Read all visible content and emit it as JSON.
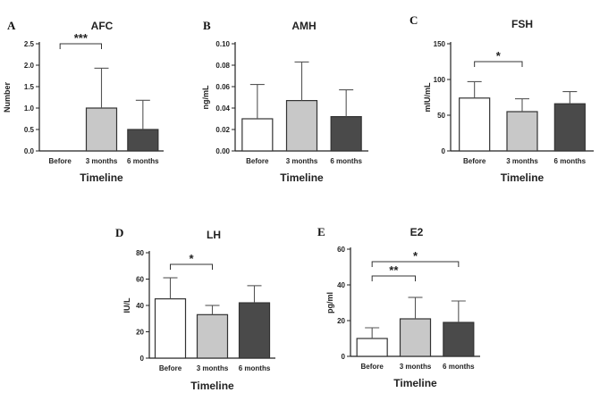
{
  "chart_data": [
    {
      "panel": "A",
      "type": "bar",
      "title": "AFC",
      "xlabel": "Timeline",
      "ylabel": "Number",
      "categories": [
        "Before",
        "3 months",
        "6 months"
      ],
      "values": [
        0,
        1.0,
        0.5
      ],
      "errors": [
        0,
        0.93,
        0.68
      ],
      "ylim": [
        0,
        2.5
      ],
      "yticks": [
        "0.0",
        "0.5",
        "1.0",
        "1.5",
        "2.0",
        "2.5"
      ],
      "bar_colors": [
        "#ffffff",
        "#c8c8c8",
        "#4a4a4a"
      ],
      "significance": [
        {
          "from": 0,
          "to": 1,
          "label": "***"
        }
      ]
    },
    {
      "panel": "B",
      "type": "bar",
      "title": "AMH",
      "xlabel": "Timeline",
      "ylabel": "ng/mL",
      "categories": [
        "Before",
        "3 months",
        "6 months"
      ],
      "values": [
        0.03,
        0.047,
        0.032
      ],
      "errors": [
        0.032,
        0.036,
        0.025
      ],
      "ylim": [
        0,
        0.1
      ],
      "yticks": [
        "0.00",
        "0.02",
        "0.04",
        "0.06",
        "0.08",
        "0.10"
      ],
      "bar_colors": [
        "#ffffff",
        "#c8c8c8",
        "#4a4a4a"
      ],
      "significance": []
    },
    {
      "panel": "C",
      "type": "bar",
      "title": "FSH",
      "xlabel": "Timeline",
      "ylabel": "mIU/mL",
      "categories": [
        "Before",
        "3 months",
        "6 months"
      ],
      "values": [
        74,
        55,
        66
      ],
      "errors": [
        23,
        18,
        17
      ],
      "ylim": [
        0,
        150
      ],
      "yticks": [
        "0",
        "50",
        "100",
        "150"
      ],
      "bar_colors": [
        "#ffffff",
        "#c8c8c8",
        "#4a4a4a"
      ],
      "significance": [
        {
          "from": 0,
          "to": 1,
          "label": "*"
        }
      ]
    },
    {
      "panel": "D",
      "type": "bar",
      "title": "LH",
      "xlabel": "Timeline",
      "ylabel": "IU/L",
      "categories": [
        "Before",
        "3 months",
        "6 months"
      ],
      "values": [
        45,
        33,
        42
      ],
      "errors": [
        16,
        7,
        13
      ],
      "ylim": [
        0,
        80
      ],
      "yticks": [
        "0",
        "20",
        "40",
        "60",
        "80"
      ],
      "bar_colors": [
        "#ffffff",
        "#c8c8c8",
        "#4a4a4a"
      ],
      "significance": [
        {
          "from": 0,
          "to": 1,
          "label": "*"
        }
      ]
    },
    {
      "panel": "E",
      "type": "bar",
      "title": "E2",
      "xlabel": "Timeline",
      "ylabel": "pg/ml",
      "categories": [
        "Before",
        "3 months",
        "6 months"
      ],
      "values": [
        10,
        21,
        19
      ],
      "errors": [
        6,
        12,
        12
      ],
      "ylim": [
        0,
        60
      ],
      "yticks": [
        "0",
        "20",
        "40",
        "60"
      ],
      "bar_colors": [
        "#ffffff",
        "#c8c8c8",
        "#4a4a4a"
      ],
      "significance": [
        {
          "from": 0,
          "to": 1,
          "label": "**"
        },
        {
          "from": 0,
          "to": 2,
          "label": "*"
        }
      ]
    }
  ]
}
